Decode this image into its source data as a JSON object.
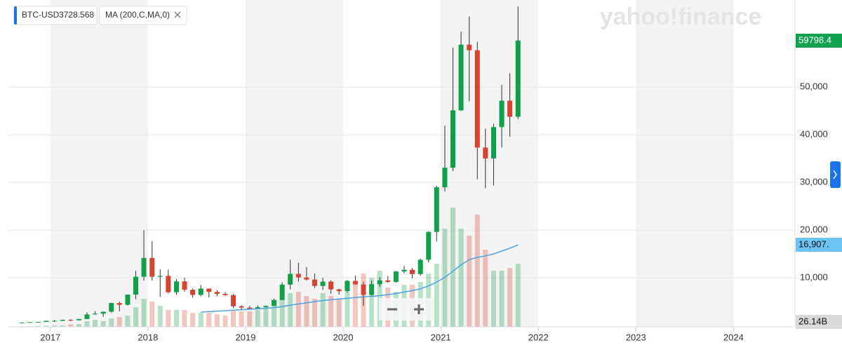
{
  "chart_data": {
    "type": "candlestick",
    "symbol": "BTC-USD",
    "symbol_value": "3728.568",
    "indicator": "MA (200,C,MA,0)",
    "watermark": "yahoo!finance",
    "price_tag": "59798.4",
    "ma_tag": "16,907.",
    "volume_tag": "26.14B",
    "x": [
      2016.708,
      2016.792,
      2016.875,
      2016.958,
      2017.042,
      2017.125,
      2017.208,
      2017.292,
      2017.375,
      2017.458,
      2017.542,
      2017.625,
      2017.708,
      2017.792,
      2017.875,
      2017.958,
      2018.042,
      2018.125,
      2018.208,
      2018.292,
      2018.375,
      2018.458,
      2018.542,
      2018.625,
      2018.708,
      2018.792,
      2018.875,
      2018.958,
      2019.042,
      2019.125,
      2019.208,
      2019.292,
      2019.375,
      2019.458,
      2019.542,
      2019.625,
      2019.708,
      2019.792,
      2019.875,
      2019.958,
      2020.042,
      2020.125,
      2020.208,
      2020.292,
      2020.375,
      2020.458,
      2020.542,
      2020.625,
      2020.708,
      2020.792,
      2020.875,
      2020.958,
      2021.042,
      2021.125,
      2021.208,
      2021.292,
      2021.375,
      2021.458,
      2021.542,
      2021.625,
      2021.708,
      2021.792
    ],
    "open": [
      600,
      610,
      700,
      745,
      965,
      970,
      1190,
      1080,
      1350,
      2300,
      2480,
      2880,
      4700,
      4340,
      6470,
      10230,
      14160,
      10220,
      10400,
      6970,
      9240,
      7490,
      6400,
      7730,
      7040,
      6630,
      6370,
      4020,
      3740,
      3460,
      3850,
      4110,
      5350,
      8570,
      10820,
      10080,
      9630,
      8290,
      9200,
      7570,
      7190,
      9350,
      8600,
      6440,
      8660,
      9460,
      9140,
      11320,
      11680,
      10780,
      13780,
      19630,
      29000,
      33110,
      45140,
      58920,
      57750,
      37330,
      35040,
      41630,
      47170,
      43790
    ],
    "high": [
      620,
      720,
      760,
      980,
      1150,
      1210,
      1290,
      1350,
      2760,
      3000,
      2900,
      4770,
      4980,
      6470,
      11500,
      20000,
      17700,
      11800,
      11700,
      9750,
      9990,
      7750,
      8470,
      7760,
      7410,
      7000,
      6590,
      4240,
      4110,
      4200,
      4110,
      5640,
      9070,
      13800,
      13130,
      12270,
      10900,
      10020,
      9510,
      7700,
      9550,
      10460,
      9170,
      9440,
      10060,
      10380,
      11430,
      12470,
      12050,
      14030,
      19750,
      29300,
      41950,
      58330,
      61680,
      64860,
      59520,
      41300,
      42320,
      50480,
      52920,
      66930
    ],
    "low": [
      590,
      605,
      690,
      745,
      750,
      940,
      890,
      1080,
      1350,
      2300,
      1830,
      2690,
      2980,
      4170,
      5520,
      9420,
      9400,
      6050,
      6700,
      6430,
      7090,
      5830,
      6130,
      5880,
      6120,
      6220,
      3600,
      3150,
      3400,
      3400,
      3700,
      4100,
      5330,
      7560,
      9160,
      9420,
      7860,
      7450,
      6620,
      6470,
      6870,
      8520,
      4110,
      6200,
      8120,
      8970,
      8990,
      10950,
      9880,
      10420,
      13240,
      17620,
      28130,
      32380,
      45000,
      47040,
      30680,
      28800,
      29360,
      37330,
      39600,
      43320
    ],
    "close": [
      610,
      700,
      745,
      965,
      970,
      1190,
      1080,
      1350,
      2300,
      2480,
      2880,
      4700,
      4340,
      6470,
      10230,
      14160,
      10220,
      10400,
      6970,
      9240,
      7490,
      6400,
      7730,
      7040,
      6630,
      6370,
      4020,
      3740,
      3460,
      3850,
      4110,
      5350,
      8570,
      10820,
      10080,
      9630,
      8290,
      9200,
      7570,
      7190,
      9350,
      8600,
      6440,
      8660,
      9460,
      9140,
      11320,
      11680,
      10780,
      13780,
      19630,
      29000,
      33110,
      45140,
      58920,
      57750,
      37330,
      35040,
      41630,
      47170,
      43790,
      59798.4
    ],
    "ma": [
      null,
      null,
      null,
      null,
      null,
      null,
      null,
      null,
      null,
      null,
      null,
      null,
      null,
      null,
      null,
      null,
      null,
      null,
      null,
      null,
      null,
      null,
      2800,
      2900,
      3000,
      3100,
      3200,
      3300,
      3400,
      3500,
      3600,
      3750,
      3950,
      4250,
      4500,
      4750,
      5000,
      5200,
      5400,
      5550,
      5700,
      5850,
      6000,
      6100,
      6250,
      6450,
      6700,
      7000,
      7300,
      7700,
      8300,
      9100,
      10100,
      11400,
      12700,
      13800,
      14300,
      14600,
      15000,
      15600,
      16200,
      16907
    ],
    "volume": [
      0.5,
      0.5,
      0.7,
      1,
      1,
      1,
      2,
      2,
      4,
      5,
      4,
      6,
      7,
      8,
      14,
      20,
      18,
      15,
      12,
      12,
      12,
      10,
      10,
      10,
      9,
      8,
      12,
      11,
      11,
      12,
      13,
      15,
      20,
      24,
      25,
      22,
      20,
      24,
      22,
      20,
      25,
      30,
      38,
      35,
      40,
      28,
      25,
      30,
      30,
      32,
      38,
      45,
      70,
      85,
      70,
      65,
      80,
      55,
      40,
      40,
      42,
      45
    ],
    "volume_ylim": [
      0,
      100
    ],
    "up_color": "#0fa04a",
    "down_color": "#d8432f",
    "ma_color": "#4ba3e3",
    "xlim": [
      2016.57,
      2024.63
    ],
    "xticks": [
      2017,
      2018,
      2019,
      2020,
      2021,
      2022,
      2023,
      2024
    ],
    "ylim": [
      0,
      68000
    ],
    "yticks": [
      {
        "value": 10000,
        "label": "10,000"
      },
      {
        "value": 20000,
        "label": "20,000"
      },
      {
        "value": 30000,
        "label": "30,000"
      },
      {
        "value": 40000,
        "label": "40,000"
      },
      {
        "value": 50000,
        "label": "50,000"
      }
    ],
    "grid": true
  }
}
